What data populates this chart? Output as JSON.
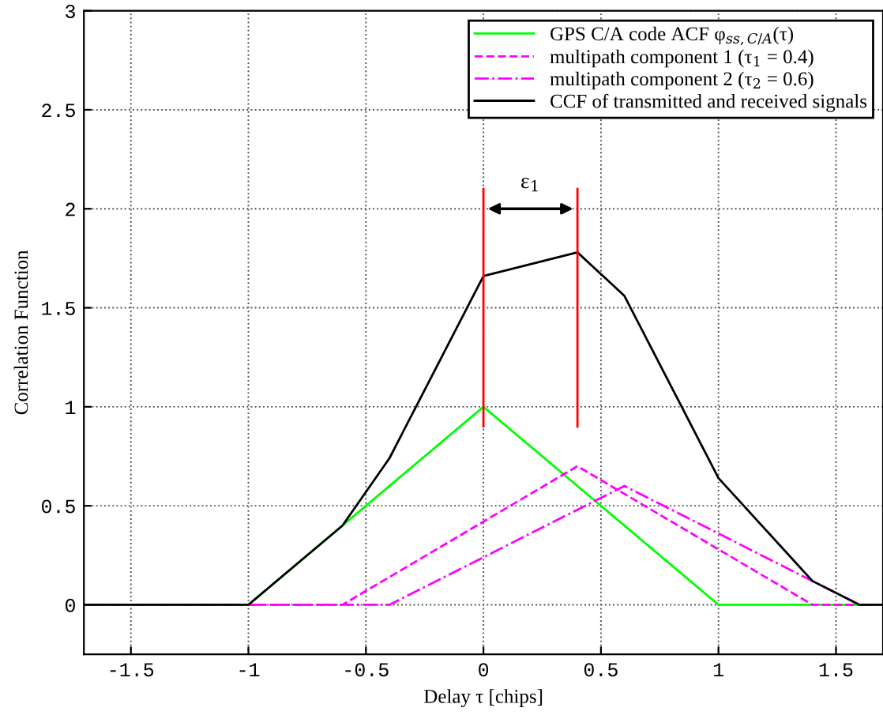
{
  "chart_data": {
    "type": "line",
    "xlabel": "Delay τ [chips]",
    "ylabel": "Correlation Function",
    "xlim": [
      -1.7,
      1.7
    ],
    "ylim": [
      -0.25,
      3
    ],
    "xticks": [
      -1.5,
      -1,
      -0.5,
      0,
      0.5,
      1,
      1.5
    ],
    "yticks": [
      0,
      0.5,
      1,
      1.5,
      2,
      2.5,
      3
    ],
    "grid": true,
    "legend": "top right",
    "series": [
      {
        "name": "GPS C/A code ACF φ$_{ss,C/A}$(τ)",
        "color": "#00ff00",
        "line_style": "solid",
        "x": [
          -1.7,
          -1,
          0,
          1,
          1.7
        ],
        "values": [
          0,
          0,
          1,
          0,
          0
        ]
      },
      {
        "name": "multipath component 1 (τ$_{1}$ = 0.4)",
        "color": "#ff00ff",
        "line_style": "dashed",
        "x": [
          -1.7,
          -0.6,
          0.4,
          1.4,
          1.7
        ],
        "values": [
          0,
          0,
          0.7,
          0,
          0
        ]
      },
      {
        "name": "multipath component 2 (τ$_{2}$ = 0.6)",
        "color": "#ff00ff",
        "line_style": "dashdot",
        "x": [
          -1.7,
          -0.4,
          0.6,
          1.6,
          1.7
        ],
        "values": [
          0,
          0,
          0.6,
          0,
          0
        ]
      },
      {
        "name": "CCF of transmitted and received signals",
        "color": "#000000",
        "line_style": "solid",
        "x": [
          -1.7,
          -1,
          -0.6,
          -0.4,
          0,
          0.4,
          0.6,
          1,
          1.4,
          1.6,
          1.7
        ],
        "values": [
          0,
          0,
          0.4,
          0.74,
          1.66,
          1.78,
          1.56,
          0.64,
          0.12,
          0,
          0
        ]
      },
      {
        "color": "#ff0000",
        "line_style": "solid",
        "x": [
          0,
          0
        ],
        "values": [
          0.9,
          2.1
        ]
      },
      {
        "color": "#ff0000",
        "line_style": "solid",
        "x": [
          0.4,
          0.4
        ],
        "values": [
          0.9,
          2.1
        ]
      }
    ],
    "annotations": [
      "ε$_{1}$"
    ]
  }
}
